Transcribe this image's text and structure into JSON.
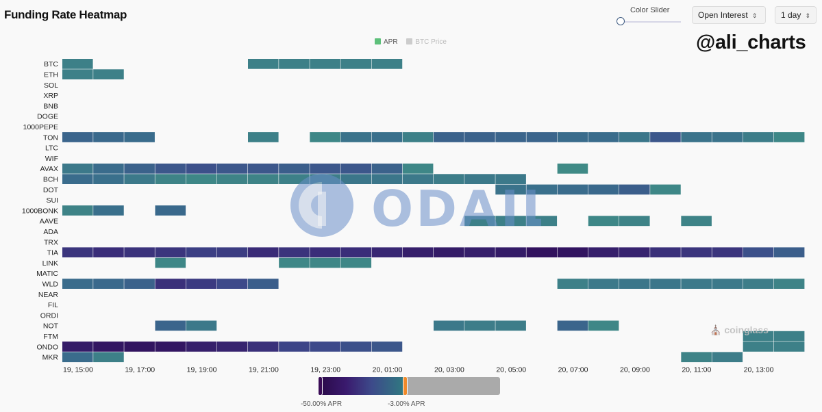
{
  "header": {
    "title": "Funding Rate Heatmap",
    "slider_label": "Color Slider",
    "metric_select": "Open Interest",
    "range_select": "1 day",
    "watermark_handle": "@ali_charts"
  },
  "colorbar": {
    "min_label": "-50.00% APR",
    "max_label": "-3.00% APR",
    "min": -50.0,
    "max": -3.0
  },
  "brand": {
    "odaily": "ODAILY",
    "coinglass": "coinglass"
  },
  "colors": {
    "apr_legend": "#5dc07a",
    "btc_price_legend": "#cccccc",
    "low": "#2f0a56",
    "mid": "#3d4a8a",
    "high": "#3f8a86"
  },
  "chart_data": {
    "type": "heatmap",
    "legend": [
      {
        "name": "APR",
        "active": true
      },
      {
        "name": "BTC Price",
        "active": false
      }
    ],
    "x": [
      "19, 15:00",
      "19, 16:00",
      "19, 17:00",
      "19, 18:00",
      "19, 19:00",
      "19, 20:00",
      "19, 21:00",
      "19, 22:00",
      "19, 23:00",
      "20, 00:00",
      "20, 01:00",
      "20, 02:00",
      "20, 03:00",
      "20, 04:00",
      "20, 05:00",
      "20, 06:00",
      "20, 07:00",
      "20, 08:00",
      "20, 09:00",
      "20, 10:00",
      "20, 11:00",
      "20, 12:00",
      "20, 13:00",
      "20, 14:00"
    ],
    "x_tick_labels": [
      "19, 15:00",
      "19, 17:00",
      "19, 19:00",
      "19, 21:00",
      "19, 23:00",
      "20, 01:00",
      "20, 03:00",
      "20, 05:00",
      "20, 07:00",
      "20, 09:00",
      "20, 11:00",
      "20, 13:00"
    ],
    "y": [
      "BTC",
      "ETH",
      "SOL",
      "XRP",
      "BNB",
      "DOGE",
      "1000PEPE",
      "TON",
      "LTC",
      "WIF",
      "AVAX",
      "BCH",
      "DOT",
      "SUI",
      "1000BONK",
      "AAVE",
      "ADA",
      "TRX",
      "TIA",
      "LINK",
      "MATIC",
      "WLD",
      "NEAR",
      "FIL",
      "ORDI",
      "NOT",
      "FTM",
      "ONDO",
      "MKR"
    ],
    "value_unit": "% APR",
    "color_range": [
      -50.0,
      -3.0
    ],
    "values": [
      [
        -6,
        null,
        null,
        null,
        null,
        null,
        -6,
        -6,
        -6,
        -6,
        -6,
        null,
        null,
        null,
        null,
        null,
        null,
        null,
        null,
        null,
        null,
        null,
        null,
        null
      ],
      [
        -6,
        -6,
        null,
        null,
        null,
        null,
        null,
        null,
        null,
        null,
        null,
        null,
        null,
        null,
        null,
        null,
        null,
        null,
        null,
        null,
        null,
        null,
        null,
        null
      ],
      [
        null,
        null,
        null,
        null,
        null,
        null,
        null,
        null,
        null,
        null,
        null,
        null,
        null,
        null,
        null,
        null,
        null,
        null,
        null,
        null,
        null,
        null,
        null,
        null
      ],
      [
        null,
        null,
        null,
        null,
        null,
        null,
        null,
        null,
        null,
        null,
        null,
        null,
        null,
        null,
        null,
        null,
        null,
        null,
        null,
        null,
        null,
        null,
        null,
        null
      ],
      [
        null,
        null,
        null,
        null,
        null,
        null,
        null,
        null,
        null,
        null,
        null,
        null,
        null,
        null,
        null,
        null,
        null,
        null,
        null,
        null,
        null,
        null,
        null,
        null
      ],
      [
        null,
        null,
        null,
        null,
        null,
        null,
        null,
        null,
        null,
        null,
        null,
        null,
        null,
        null,
        null,
        null,
        null,
        null,
        null,
        null,
        null,
        null,
        null,
        null
      ],
      [
        null,
        null,
        null,
        null,
        null,
        null,
        null,
        null,
        null,
        null,
        null,
        null,
        null,
        null,
        null,
        null,
        null,
        null,
        null,
        null,
        null,
        null,
        null,
        null
      ],
      [
        -14,
        -13,
        -12,
        null,
        null,
        null,
        -6,
        null,
        -4,
        -10,
        -11,
        -6,
        -15,
        -15,
        -14,
        -14,
        -12,
        -12,
        -9,
        -18,
        -10,
        -10,
        -7,
        -4
      ],
      [
        null,
        null,
        null,
        null,
        null,
        null,
        null,
        null,
        null,
        null,
        null,
        null,
        null,
        null,
        null,
        null,
        null,
        null,
        null,
        null,
        null,
        null,
        null,
        null
      ],
      [
        null,
        null,
        null,
        null,
        null,
        null,
        null,
        null,
        null,
        null,
        null,
        null,
        null,
        null,
        null,
        null,
        null,
        null,
        null,
        null,
        null,
        null,
        null,
        null
      ],
      [
        -8,
        -12,
        -15,
        -18,
        -20,
        -18,
        -18,
        -16,
        -18,
        -18,
        -15,
        -4,
        null,
        null,
        null,
        null,
        -3,
        null,
        null,
        null,
        null,
        null,
        null,
        null
      ],
      [
        -12,
        -11,
        -8,
        -5,
        -4,
        -5,
        -5,
        -6,
        -7,
        -9,
        -9,
        -8,
        -7,
        -8,
        -8,
        null,
        null,
        null,
        null,
        null,
        null,
        null,
        null,
        null
      ],
      [
        null,
        null,
        null,
        null,
        null,
        null,
        null,
        null,
        null,
        null,
        null,
        null,
        null,
        null,
        -10,
        -11,
        -12,
        -13,
        -16,
        -4,
        null,
        null,
        null,
        null
      ],
      [
        null,
        null,
        null,
        null,
        null,
        null,
        null,
        null,
        null,
        null,
        null,
        null,
        null,
        null,
        null,
        null,
        null,
        null,
        null,
        null,
        null,
        null,
        null,
        null
      ],
      [
        -5,
        -11,
        null,
        -13,
        null,
        null,
        null,
        null,
        null,
        null,
        null,
        null,
        null,
        null,
        null,
        null,
        null,
        null,
        null,
        null,
        null,
        null,
        null,
        null
      ],
      [
        null,
        null,
        null,
        null,
        null,
        null,
        null,
        null,
        null,
        null,
        null,
        null,
        null,
        -6,
        -6,
        -6,
        null,
        -4,
        -5,
        null,
        -5,
        null,
        null,
        null
      ],
      [
        null,
        null,
        null,
        null,
        null,
        null,
        null,
        null,
        null,
        null,
        null,
        null,
        null,
        null,
        null,
        null,
        null,
        null,
        null,
        null,
        null,
        null,
        null,
        null
      ],
      [
        null,
        null,
        null,
        null,
        null,
        null,
        null,
        null,
        null,
        null,
        null,
        null,
        null,
        null,
        null,
        null,
        null,
        null,
        null,
        null,
        null,
        null,
        null,
        null
      ],
      [
        -30,
        -33,
        -31,
        -30,
        -26,
        -27,
        -34,
        -31,
        -33,
        -33,
        -36,
        -40,
        -42,
        -40,
        -42,
        -46,
        -45,
        -40,
        -38,
        -32,
        -30,
        -30,
        -20,
        -16
      ],
      [
        null,
        null,
        null,
        -4,
        null,
        null,
        null,
        -4,
        -4,
        -4,
        null,
        null,
        null,
        null,
        null,
        null,
        null,
        null,
        null,
        null,
        null,
        null,
        null,
        null
      ],
      [
        null,
        null,
        null,
        null,
        null,
        null,
        null,
        null,
        null,
        null,
        null,
        null,
        null,
        null,
        null,
        null,
        null,
        null,
        null,
        null,
        null,
        null,
        null,
        null
      ],
      [
        -12,
        -13,
        -15,
        -32,
        -28,
        -22,
        -16,
        null,
        null,
        null,
        null,
        null,
        null,
        null,
        null,
        null,
        -6,
        -8,
        -9,
        -9,
        -8,
        -8,
        -7,
        -5
      ],
      [
        null,
        null,
        null,
        null,
        null,
        null,
        null,
        null,
        null,
        null,
        null,
        null,
        null,
        null,
        null,
        null,
        null,
        null,
        null,
        null,
        null,
        null,
        null,
        null
      ],
      [
        null,
        null,
        null,
        null,
        null,
        null,
        null,
        null,
        null,
        null,
        null,
        null,
        null,
        null,
        null,
        null,
        null,
        null,
        null,
        null,
        null,
        null,
        null,
        null
      ],
      [
        null,
        null,
        null,
        null,
        null,
        null,
        null,
        null,
        null,
        null,
        null,
        null,
        null,
        null,
        null,
        null,
        null,
        null,
        null,
        null,
        null,
        null,
        null,
        null
      ],
      [
        null,
        null,
        null,
        -14,
        -8,
        null,
        null,
        null,
        null,
        null,
        null,
        null,
        -8,
        -7,
        -7,
        null,
        -14,
        -4,
        null,
        null,
        null,
        null,
        null,
        null
      ],
      [
        null,
        null,
        null,
        null,
        null,
        null,
        null,
        null,
        null,
        null,
        null,
        null,
        null,
        null,
        null,
        null,
        null,
        null,
        null,
        null,
        null,
        null,
        -6,
        -6
      ],
      [
        -42,
        -44,
        -45,
        -44,
        -40,
        -38,
        -32,
        -24,
        -22,
        -20,
        -18,
        null,
        null,
        null,
        null,
        null,
        null,
        null,
        null,
        null,
        null,
        null,
        -6,
        -6
      ],
      [
        -12,
        -6,
        null,
        null,
        null,
        null,
        null,
        null,
        null,
        null,
        null,
        null,
        null,
        null,
        null,
        null,
        null,
        null,
        null,
        null,
        -5,
        -7,
        null,
        null
      ]
    ]
  }
}
